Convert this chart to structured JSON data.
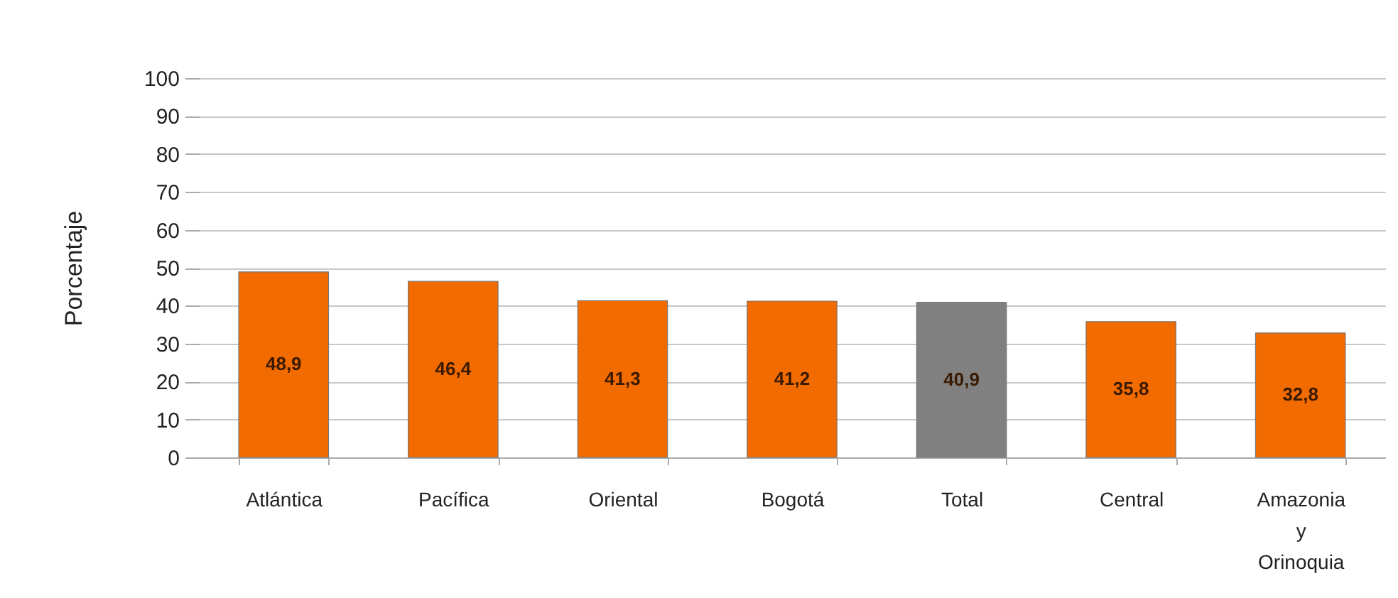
{
  "chart_data": {
    "type": "bar",
    "ylabel": "Porcentaje",
    "categories": [
      "Atlántica",
      "Pacífica",
      "Oriental",
      "Bogotá",
      "Total",
      "Central",
      "Amazonia y Orinoquia"
    ],
    "values": [
      48.9,
      46.4,
      41.3,
      41.2,
      40.9,
      35.8,
      32.8
    ],
    "colors": [
      "#f26b00",
      "#f26b00",
      "#f26b00",
      "#f26b00",
      "#808080",
      "#f26b00",
      "#f26b00"
    ],
    "value_labels": [
      "48,9",
      "46,4",
      "41,3",
      "41,2",
      "40,9",
      "35,8",
      "32,8"
    ],
    "ylim": [
      0,
      100
    ],
    "yticks": [
      0,
      10,
      20,
      30,
      40,
      50,
      60,
      70,
      80,
      90,
      100
    ],
    "grid": "y"
  }
}
